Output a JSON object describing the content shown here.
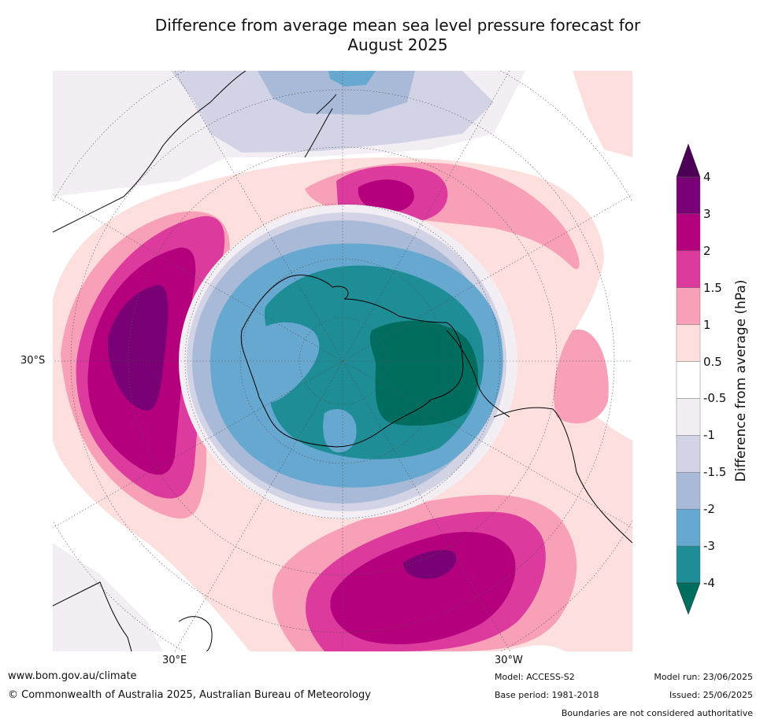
{
  "title_line1": "Difference from average mean sea level pressure forecast for",
  "title_line2": "August 2025",
  "labels": {
    "lat_30s": "30°S",
    "lon_30e": "30°E",
    "lon_30w": "30°W"
  },
  "colorbar": {
    "title": "Difference from average (hPa)",
    "ticks": [
      "4",
      "3",
      "2",
      "1.5",
      "1",
      "0.5",
      "-0.5",
      "-1",
      "-1.5",
      "-2",
      "-3",
      "-4"
    ],
    "colors_top_to_bottom": [
      "#4b0055",
      "#790075",
      "#b5007e",
      "#dc3a9c",
      "#f8a0b8",
      "#fde0de",
      "#ffffff",
      "#f3eef4",
      "#d2d4e6",
      "#a8bad8",
      "#67a8d0",
      "#1e8d96",
      "#006d5e"
    ]
  },
  "footer": {
    "url": "www.bom.gov.au/climate",
    "copyright": "© Commonwealth of Australia 2025, Australian Bureau of Meteorology",
    "model": "Model: ACCESS-S2",
    "base_period": "Base period: 1981-2018",
    "model_run": "Model run: 23/06/2025",
    "issued": "Issued: 25/06/2025",
    "disclaimer": "Boundaries are not considered authoritative"
  }
}
